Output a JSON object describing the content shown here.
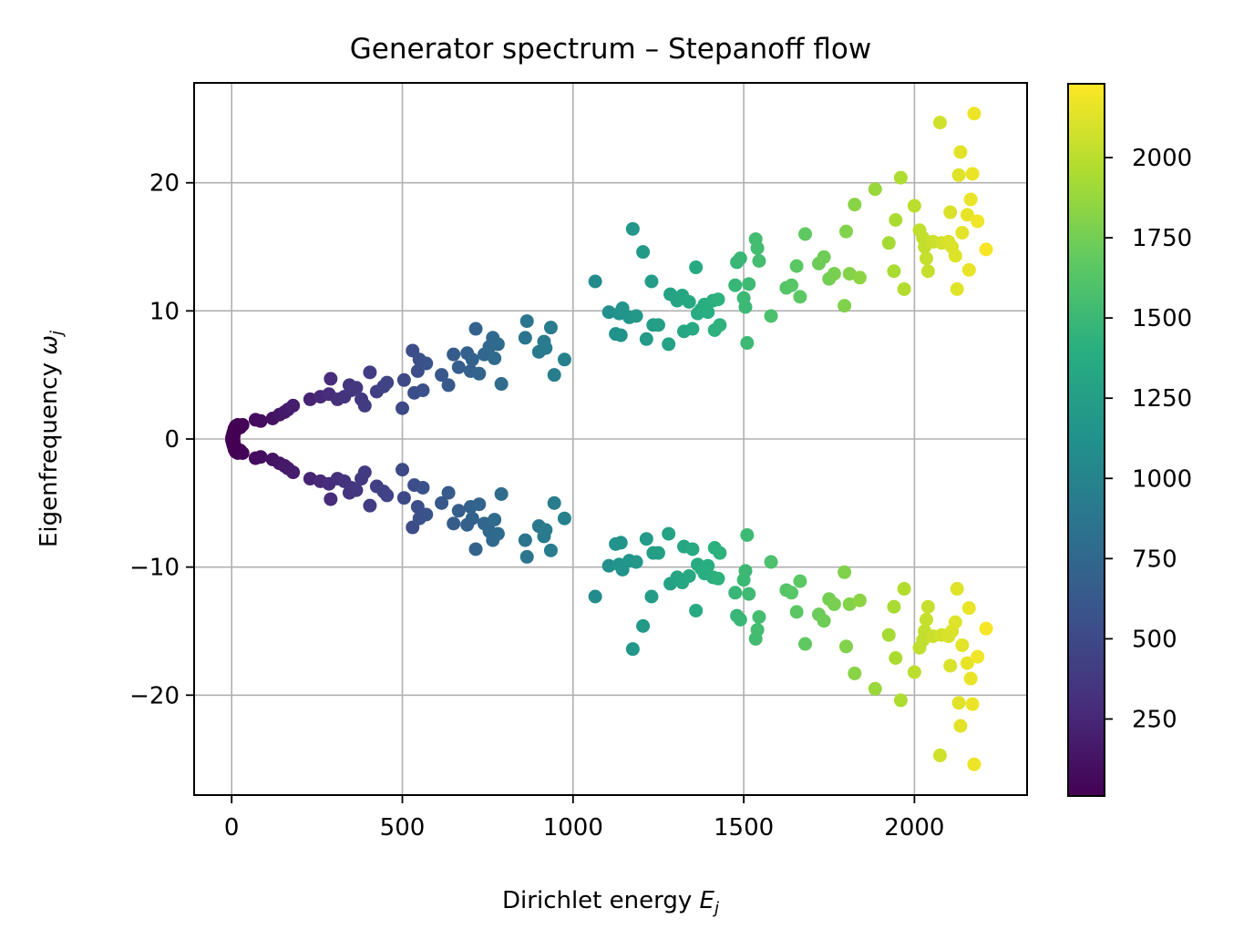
{
  "chart_data": {
    "type": "scatter",
    "title": "Generator spectrum – Stepanoff flow",
    "xlabel_main": "Dirichlet energy ",
    "xlabel_sym": "E",
    "xlabel_sub": "j",
    "ylabel_main": "Eigenfrequency ",
    "ylabel_sym": "ω",
    "ylabel_sub": "j",
    "xlim": [
      -110,
      2330
    ],
    "ylim": [
      -27.8,
      27.8
    ],
    "xticks": [
      0,
      500,
      1000,
      1500,
      2000
    ],
    "xtick_labels": [
      "0",
      "500",
      "1000",
      "1500",
      "2000"
    ],
    "yticks": [
      20,
      10,
      0,
      -10,
      -20
    ],
    "ytick_labels": [
      "20",
      "10",
      "0",
      "−10",
      "−20"
    ],
    "grid": true,
    "symmetric_about_zero": true,
    "colormap": "viridis",
    "color_by": "x",
    "colorbar": {
      "min": 10,
      "max": 2230,
      "ticks": [
        250,
        500,
        750,
        1000,
        1250,
        1500,
        1750,
        2000
      ],
      "tick_labels": [
        "250",
        "500",
        "750",
        "1000",
        "1250",
        "1500",
        "1750",
        "2000"
      ]
    },
    "points": [
      [
        1,
        0.1
      ],
      [
        3,
        0.3
      ],
      [
        5,
        0.5
      ],
      [
        8,
        0.8
      ],
      [
        12,
        1.0
      ],
      [
        18,
        1.1
      ],
      [
        25,
        0.9
      ],
      [
        32,
        1.1
      ],
      [
        10,
        0.6
      ],
      [
        6,
        0.2
      ],
      [
        70,
        1.5
      ],
      [
        85,
        1.4
      ],
      [
        120,
        1.6
      ],
      [
        140,
        1.9
      ],
      [
        155,
        2.1
      ],
      [
        165,
        2.3
      ],
      [
        180,
        2.6
      ],
      [
        230,
        3.1
      ],
      [
        260,
        3.3
      ],
      [
        285,
        3.5
      ],
      [
        290,
        4.7
      ],
      [
        310,
        3.1
      ],
      [
        330,
        3.3
      ],
      [
        345,
        4.2
      ],
      [
        350,
        3.8
      ],
      [
        365,
        4.0
      ],
      [
        380,
        3.1
      ],
      [
        390,
        2.6
      ],
      [
        405,
        5.2
      ],
      [
        425,
        3.7
      ],
      [
        445,
        4.1
      ],
      [
        455,
        4.4
      ],
      [
        500,
        2.4
      ],
      [
        505,
        4.6
      ],
      [
        530,
        6.9
      ],
      [
        535,
        3.6
      ],
      [
        545,
        5.3
      ],
      [
        550,
        6.2
      ],
      [
        560,
        3.8
      ],
      [
        570,
        5.9
      ],
      [
        615,
        5.0
      ],
      [
        635,
        4.2
      ],
      [
        650,
        6.6
      ],
      [
        665,
        5.6
      ],
      [
        690,
        6.7
      ],
      [
        700,
        5.3
      ],
      [
        705,
        6.2
      ],
      [
        715,
        8.6
      ],
      [
        725,
        5.1
      ],
      [
        740,
        6.6
      ],
      [
        755,
        7.2
      ],
      [
        765,
        7.9
      ],
      [
        770,
        6.3
      ],
      [
        780,
        7.4
      ],
      [
        790,
        4.3
      ],
      [
        860,
        7.9
      ],
      [
        865,
        9.2
      ],
      [
        900,
        6.8
      ],
      [
        915,
        7.6
      ],
      [
        920,
        7.1
      ],
      [
        935,
        8.7
      ],
      [
        945,
        5.0
      ],
      [
        975,
        6.2
      ],
      [
        1065,
        12.3
      ],
      [
        1105,
        9.9
      ],
      [
        1125,
        8.2
      ],
      [
        1135,
        9.8
      ],
      [
        1140,
        8.1
      ],
      [
        1145,
        10.2
      ],
      [
        1165,
        9.5
      ],
      [
        1175,
        16.4
      ],
      [
        1185,
        9.6
      ],
      [
        1205,
        14.6
      ],
      [
        1215,
        7.8
      ],
      [
        1230,
        12.3
      ],
      [
        1235,
        8.9
      ],
      [
        1250,
        8.9
      ],
      [
        1280,
        7.4
      ],
      [
        1285,
        11.3
      ],
      [
        1305,
        10.8
      ],
      [
        1320,
        11.2
      ],
      [
        1325,
        8.4
      ],
      [
        1340,
        10.7
      ],
      [
        1350,
        8.6
      ],
      [
        1360,
        13.4
      ],
      [
        1365,
        9.8
      ],
      [
        1375,
        10.1
      ],
      [
        1385,
        10.5
      ],
      [
        1395,
        9.9
      ],
      [
        1410,
        10.8
      ],
      [
        1415,
        8.5
      ],
      [
        1425,
        10.9
      ],
      [
        1430,
        8.9
      ],
      [
        1475,
        12.0
      ],
      [
        1480,
        13.8
      ],
      [
        1490,
        14.1
      ],
      [
        1500,
        11.0
      ],
      [
        1505,
        10.3
      ],
      [
        1510,
        7.5
      ],
      [
        1515,
        12.1
      ],
      [
        1535,
        15.6
      ],
      [
        1540,
        14.9
      ],
      [
        1545,
        13.9
      ],
      [
        1580,
        9.6
      ],
      [
        1625,
        11.8
      ],
      [
        1640,
        12.0
      ],
      [
        1655,
        13.5
      ],
      [
        1665,
        11.1
      ],
      [
        1680,
        16.0
      ],
      [
        1720,
        13.7
      ],
      [
        1735,
        14.2
      ],
      [
        1750,
        12.5
      ],
      [
        1765,
        12.9
      ],
      [
        1795,
        10.4
      ],
      [
        1800,
        16.2
      ],
      [
        1810,
        12.9
      ],
      [
        1825,
        18.3
      ],
      [
        1840,
        12.6
      ],
      [
        1885,
        19.5
      ],
      [
        1925,
        15.3
      ],
      [
        1940,
        13.1
      ],
      [
        1945,
        17.1
      ],
      [
        1960,
        20.4
      ],
      [
        1970,
        11.7
      ],
      [
        2000,
        18.2
      ],
      [
        2015,
        16.3
      ],
      [
        2025,
        15.7
      ],
      [
        2030,
        15.0
      ],
      [
        2035,
        14.1
      ],
      [
        2040,
        13.1
      ],
      [
        2055,
        15.4
      ],
      [
        2075,
        24.7
      ],
      [
        2080,
        15.3
      ],
      [
        2100,
        15.4
      ],
      [
        2105,
        17.7
      ],
      [
        2110,
        15.0
      ],
      [
        2120,
        14.3
      ],
      [
        2125,
        11.7
      ],
      [
        2130,
        20.6
      ],
      [
        2135,
        22.4
      ],
      [
        2140,
        16.1
      ],
      [
        2155,
        17.5
      ],
      [
        2160,
        13.2
      ],
      [
        2165,
        18.7
      ],
      [
        2170,
        20.7
      ],
      [
        2175,
        25.4
      ],
      [
        2185,
        17.0
      ],
      [
        2210,
        14.8
      ]
    ]
  }
}
